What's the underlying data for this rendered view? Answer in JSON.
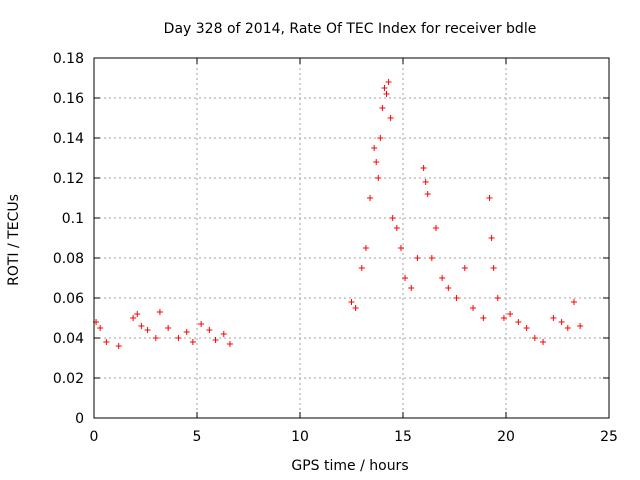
{
  "chart_data": {
    "type": "scatter",
    "title": "Day 328 of 2014, Rate Of TEC Index for receiver bdle",
    "xlabel": "GPS time / hours",
    "ylabel": "ROTI / TECUs",
    "xlim": [
      0,
      25
    ],
    "ylim": [
      0,
      0.18
    ],
    "xticks": [
      0,
      5,
      10,
      15,
      20,
      25
    ],
    "yticks": [
      0,
      0.02,
      0.04,
      0.06,
      0.08,
      0.1,
      0.12,
      0.14,
      0.16,
      0.18
    ],
    "xtick_labels": [
      "0",
      "5",
      "10",
      "15",
      "20",
      "25"
    ],
    "ytick_labels": [
      "0",
      "0.02",
      "0.04",
      "0.06",
      "0.08",
      "0.1",
      "0.12",
      "0.14",
      "0.16",
      "0.18"
    ],
    "grid": true,
    "marker": "+",
    "marker_color": "#ff0000",
    "series": [
      {
        "x": [
          0.1,
          0.3,
          0.6,
          1.2,
          1.9,
          2.1,
          2.3,
          2.6,
          3.0,
          3.2,
          3.6,
          4.1,
          4.5,
          4.8,
          5.2,
          5.6,
          5.9,
          6.3,
          6.6,
          12.5,
          12.7,
          13.0,
          13.2,
          13.4,
          13.6,
          13.7,
          13.8,
          13.9,
          14.0,
          14.1,
          14.2,
          14.3,
          14.4,
          14.5,
          14.7,
          14.9,
          15.1,
          15.4,
          15.7,
          16.0,
          16.1,
          16.2,
          16.4,
          16.6,
          16.9,
          17.2,
          17.6,
          18.0,
          18.4,
          18.9,
          19.2,
          19.3,
          19.4,
          19.6,
          19.9,
          20.2,
          20.6,
          21.0,
          21.4,
          21.8,
          22.3,
          22.7,
          23.0,
          23.3,
          23.6
        ],
        "y": [
          0.048,
          0.045,
          0.038,
          0.036,
          0.05,
          0.052,
          0.046,
          0.044,
          0.04,
          0.053,
          0.045,
          0.04,
          0.043,
          0.038,
          0.047,
          0.044,
          0.039,
          0.042,
          0.037,
          0.058,
          0.055,
          0.075,
          0.085,
          0.11,
          0.135,
          0.128,
          0.12,
          0.14,
          0.155,
          0.165,
          0.162,
          0.168,
          0.15,
          0.1,
          0.095,
          0.085,
          0.07,
          0.065,
          0.08,
          0.125,
          0.118,
          0.112,
          0.08,
          0.095,
          0.07,
          0.065,
          0.06,
          0.075,
          0.055,
          0.05,
          0.11,
          0.09,
          0.075,
          0.06,
          0.05,
          0.052,
          0.048,
          0.045,
          0.04,
          0.038,
          0.05,
          0.048,
          0.045,
          0.058,
          0.046
        ]
      }
    ]
  }
}
